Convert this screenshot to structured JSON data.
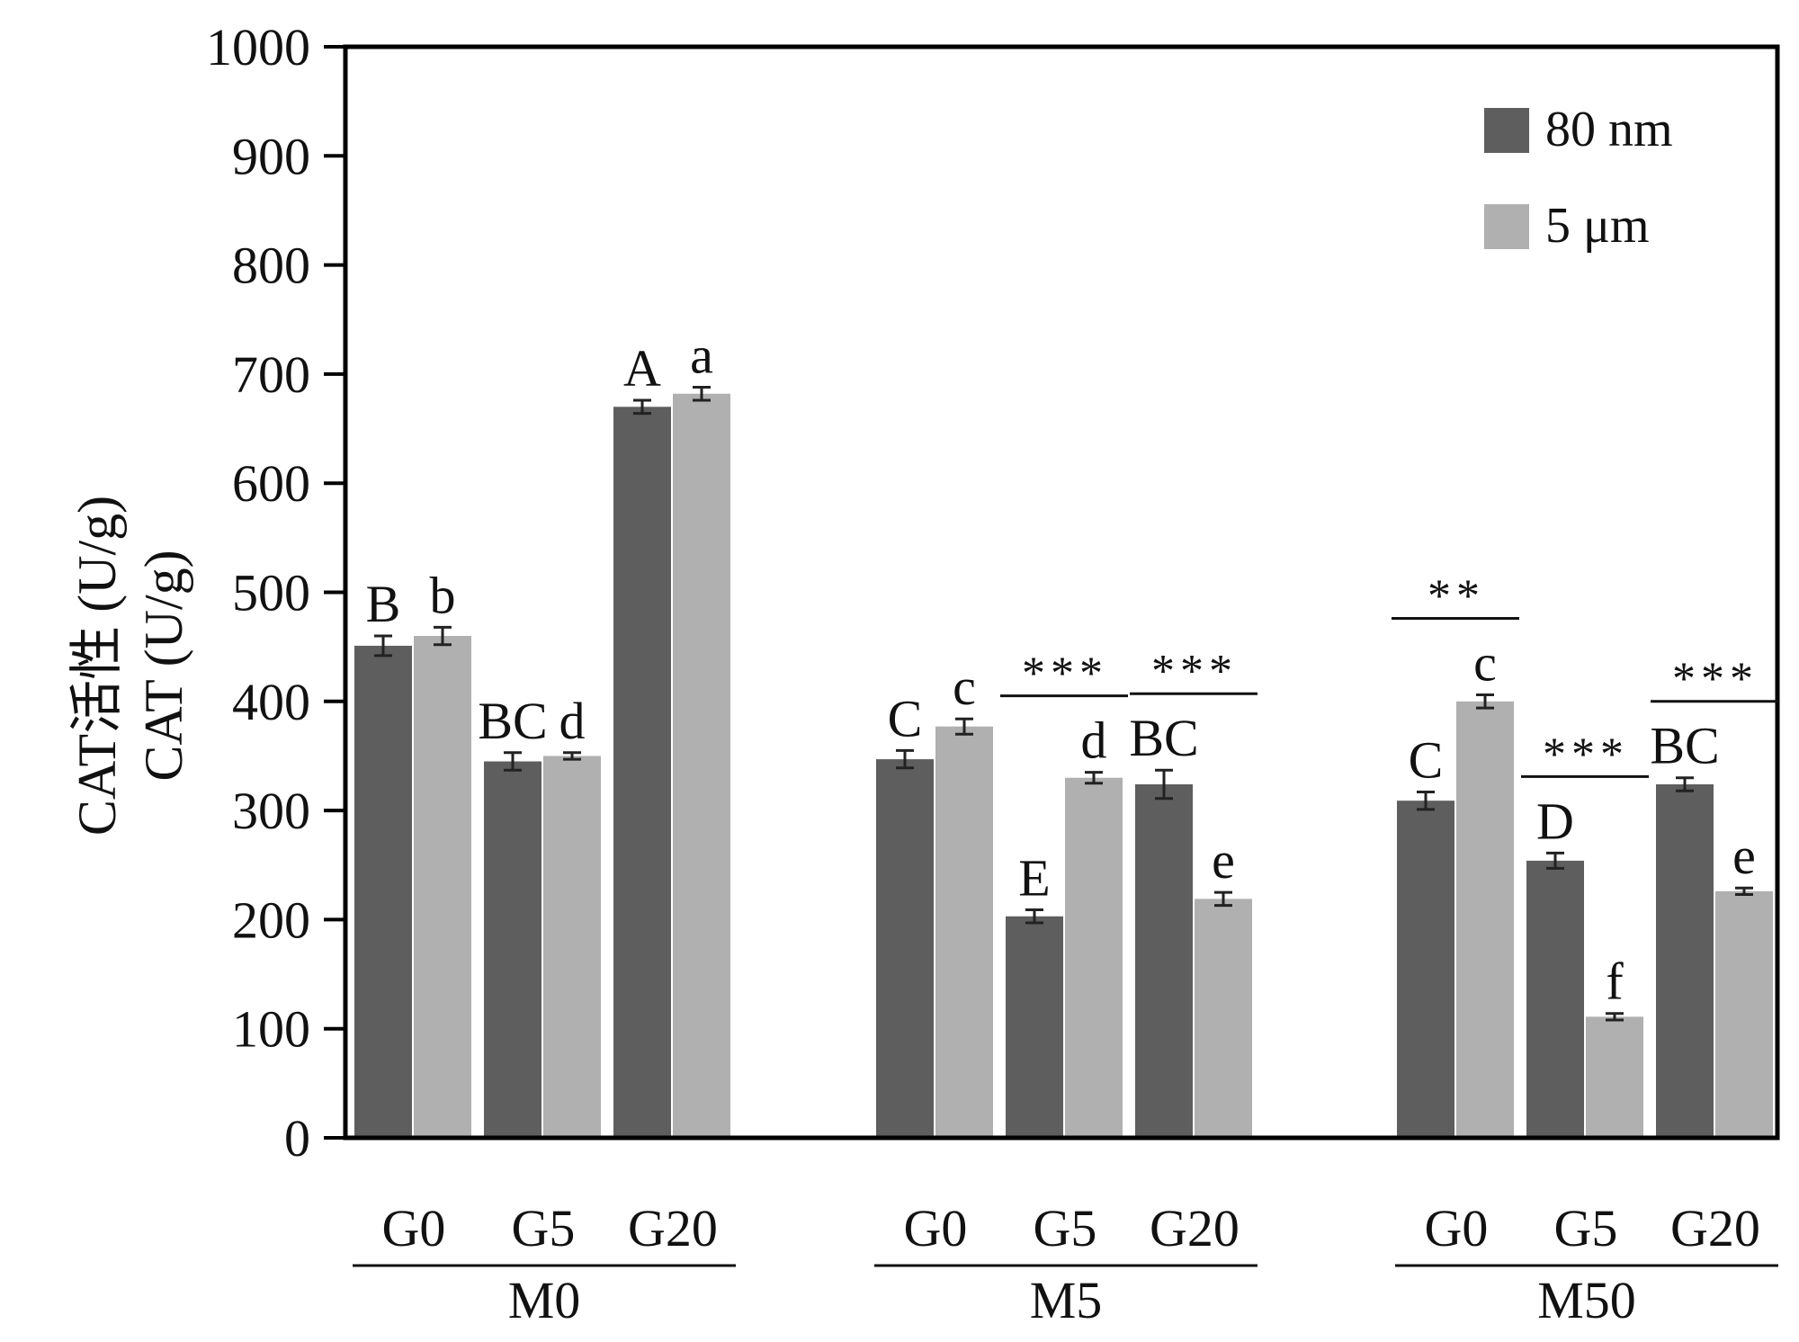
{
  "chart_data": {
    "type": "bar",
    "ylabel_lines": [
      "CAT活性 (U/g)",
      "CAT (U/g)"
    ],
    "ylim": [
      0,
      1000
    ],
    "yticks": [
      0,
      100,
      200,
      300,
      400,
      500,
      600,
      700,
      800,
      900,
      1000
    ],
    "groups": [
      "M0",
      "M5",
      "M50"
    ],
    "subcategories": [
      "G0",
      "G5",
      "G20"
    ],
    "series": [
      {
        "name": "80 nm",
        "color": "#5e5e5e",
        "values": [
          [
            451,
            345,
            670
          ],
          [
            347,
            203,
            324
          ],
          [
            309,
            254,
            324
          ]
        ],
        "errors": [
          [
            9,
            8,
            6
          ],
          [
            8,
            6,
            13
          ],
          [
            8,
            7,
            6
          ]
        ],
        "letters": [
          [
            "B",
            "BC",
            "A"
          ],
          [
            "C",
            "E",
            "BC"
          ],
          [
            "C",
            "D",
            "BC"
          ]
        ]
      },
      {
        "name": "5 μm",
        "color": "#b0b0b0",
        "values": [
          [
            460,
            350,
            682
          ],
          [
            377,
            330,
            219
          ],
          [
            400,
            111,
            226
          ]
        ],
        "errors": [
          [
            8,
            3,
            6
          ],
          [
            7,
            5,
            6
          ],
          [
            6,
            3,
            3
          ]
        ],
        "letters": [
          [
            "b",
            "d",
            "a"
          ],
          [
            "c",
            "d",
            "e"
          ],
          [
            "c",
            "f",
            "e"
          ]
        ]
      }
    ],
    "significance": [
      [
        null,
        null,
        null
      ],
      [
        null,
        "***",
        "***"
      ],
      [
        "**",
        "***",
        "***"
      ]
    ]
  }
}
